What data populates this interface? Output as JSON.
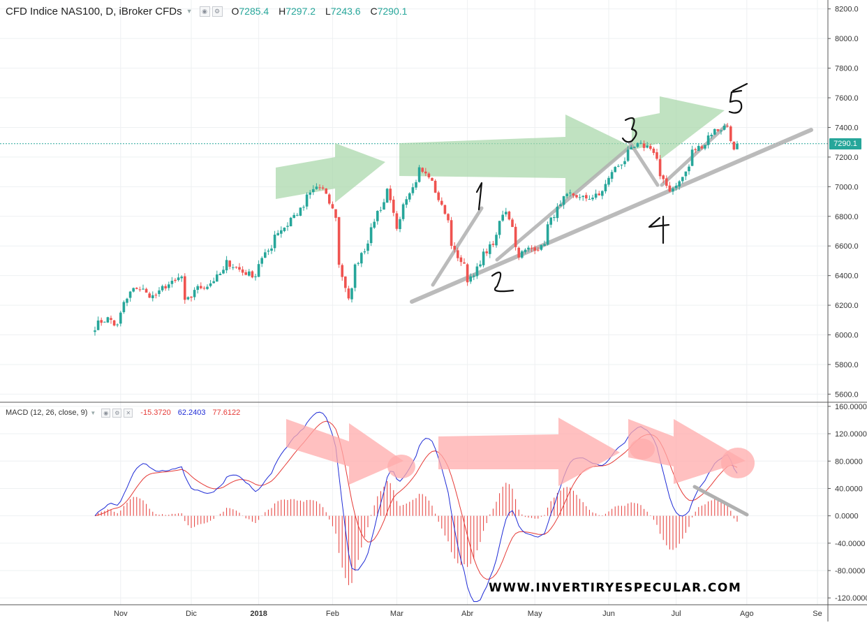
{
  "header": {
    "symbol": "CFD Indice NAS100, D, iBroker CFDs",
    "open_label": "O",
    "open": "7285.4",
    "high_label": "H",
    "high": "7297.2",
    "low_label": "L",
    "low": "7243.6",
    "close_label": "C",
    "close": "7290.1"
  },
  "last_price_tag": "7290.1",
  "macd_header": {
    "label": "MACD (12, 26, close, 9)",
    "histogram": "-15.3720",
    "macd": "62.2403",
    "signal": "77.6122"
  },
  "watermark": "WWW.INVERTIRYESPECULAR.COM",
  "colors": {
    "up": "#26a69a",
    "down": "#ef5350",
    "macd_line": "#1e2bd6",
    "signal_line": "#e53935",
    "hist": "#e53935",
    "arrow_green": "#a5d6a7",
    "arrow_red": "#ffabab",
    "trendline": "#b0b0b0"
  },
  "chart_data": [
    {
      "type": "candlestick",
      "title": "CFD Indice NAS100, D, iBroker CFDs",
      "ylim": [
        5550,
        8260
      ],
      "y_ticks": [
        "8200.0",
        "8000.0",
        "7800.0",
        "7600.0",
        "7400.0",
        "7200.0",
        "7000.0",
        "6800.0",
        "6600.0",
        "6400.0",
        "6200.0",
        "6000.0",
        "5800.0",
        "5600.0"
      ],
      "x_labels": [
        "Nov",
        "Dic",
        "2018",
        "Feb",
        "Mar",
        "Abr",
        "May",
        "Jun",
        "Jul",
        "Ago",
        "Se"
      ],
      "last_price": 7290.1,
      "close_anchors": [
        [
          "2017-10-20",
          6050
        ],
        [
          "2017-10-26",
          6110
        ],
        [
          "2017-10-31",
          6060
        ],
        [
          "2017-11-02",
          6220
        ],
        [
          "2017-11-08",
          6320
        ],
        [
          "2017-11-15",
          6260
        ],
        [
          "2017-11-22",
          6340
        ],
        [
          "2017-11-28",
          6390
        ],
        [
          "2017-11-29",
          6220
        ],
        [
          "2017-12-04",
          6310
        ],
        [
          "2017-12-11",
          6350
        ],
        [
          "2017-12-18",
          6490
        ],
        [
          "2017-12-22",
          6440
        ],
        [
          "2017-12-29",
          6400
        ],
        [
          "2018-01-08",
          6680
        ],
        [
          "2018-01-17",
          6820
        ],
        [
          "2018-01-25",
          7000
        ],
        [
          "2018-01-29",
          6980
        ],
        [
          "2018-02-02",
          6800
        ],
        [
          "2018-02-05",
          6470
        ],
        [
          "2018-02-08",
          6250
        ],
        [
          "2018-02-12",
          6460
        ],
        [
          "2018-02-20",
          6780
        ],
        [
          "2018-02-26",
          7000
        ],
        [
          "2018-03-01",
          6730
        ],
        [
          "2018-03-06",
          6900
        ],
        [
          "2018-03-12",
          7140
        ],
        [
          "2018-03-16",
          7060
        ],
        [
          "2018-03-20",
          6920
        ],
        [
          "2018-03-27",
          6560
        ],
        [
          "2018-04-02",
          6370
        ],
        [
          "2018-04-06",
          6470
        ],
        [
          "2018-04-12",
          6620
        ],
        [
          "2018-04-18",
          6840
        ],
        [
          "2018-04-24",
          6540
        ],
        [
          "2018-04-27",
          6580
        ],
        [
          "2018-05-03",
          6590
        ],
        [
          "2018-05-10",
          6850
        ],
        [
          "2018-05-16",
          6950
        ],
        [
          "2018-05-21",
          6920
        ],
        [
          "2018-05-29",
          6940
        ],
        [
          "2018-06-01",
          7050
        ],
        [
          "2018-06-08",
          7180
        ],
        [
          "2018-06-14",
          7280
        ],
        [
          "2018-06-20",
          7270
        ],
        [
          "2018-06-25",
          7060
        ],
        [
          "2018-06-28",
          6980
        ],
        [
          "2018-07-03",
          7030
        ],
        [
          "2018-07-09",
          7240
        ],
        [
          "2018-07-13",
          7290
        ],
        [
          "2018-07-18",
          7380
        ],
        [
          "2018-07-24",
          7410
        ],
        [
          "2018-07-26",
          7240
        ],
        [
          "2018-07-27",
          7290
        ]
      ]
    },
    {
      "type": "macd",
      "title": "MACD (12, 26, close, 9)",
      "ylim": [
        -130,
        165
      ],
      "y_ticks": [
        "160.0000",
        "120.0000",
        "80.0000",
        "40.0000",
        "0.0000",
        "-40.0000",
        "-80.0000",
        "-120.0000"
      ],
      "last_values": {
        "histogram": -15.372,
        "macd": 62.2403,
        "signal": 77.6122
      }
    }
  ],
  "annotations": {
    "wave_labels": [
      "1",
      "2",
      "3",
      "4",
      "5"
    ]
  }
}
